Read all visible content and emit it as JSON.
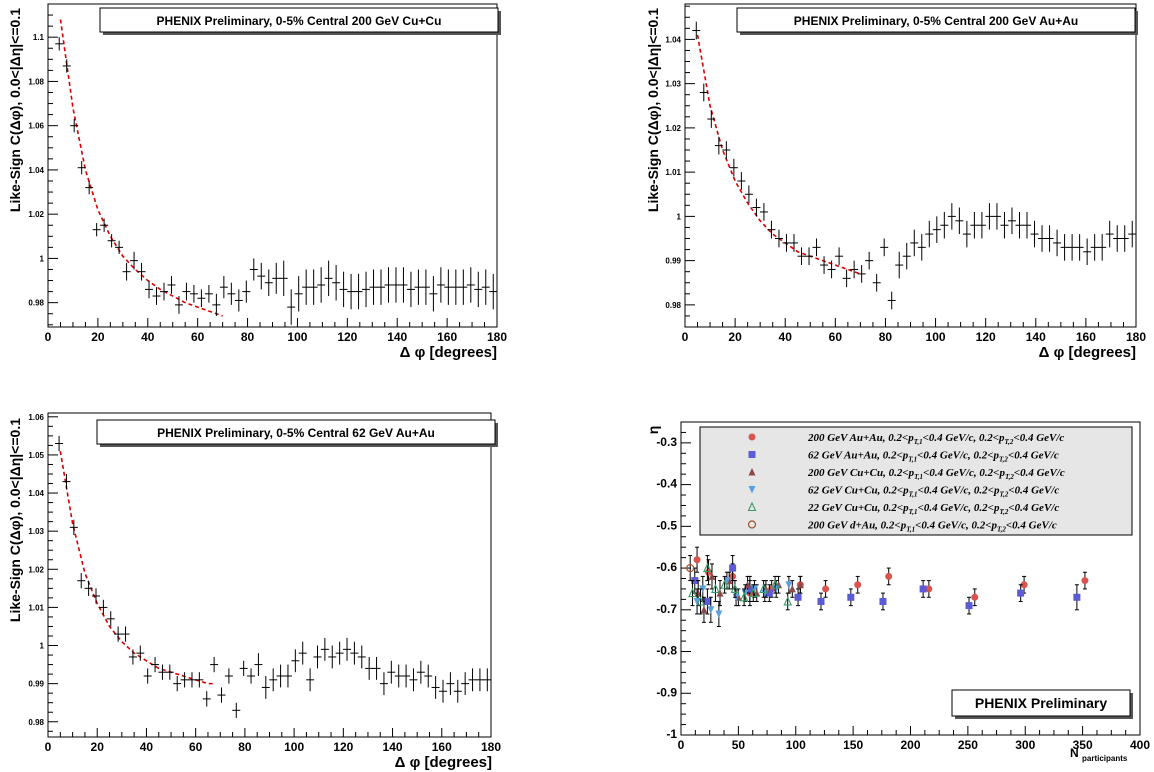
{
  "colors": {
    "cuau200": "#d9534f",
    "auau62": "#5b5bd6",
    "cucu200": "#8b4a4a",
    "cucu62": "#5aa0e0",
    "cucu22": "#3a9a6a",
    "dau200": "#a0522d",
    "fit": "#dd0000"
  },
  "chart_data": [
    {
      "type": "scatter",
      "title": "PHENIX Preliminary, 0-5% Central 200 GeV Cu+Cu",
      "xlabel": "Δ φ [degrees]",
      "ylabel": "Like-Sign C(Δφ), 0.0<|Δη|<=0.1",
      "xlim": [
        0,
        180
      ],
      "ylim": [
        0.969,
        1.115
      ],
      "xticks": [
        0,
        20,
        40,
        60,
        80,
        100,
        120,
        140,
        160,
        180
      ],
      "yticks": [
        0.98,
        1.0,
        1.02,
        1.04,
        1.06,
        1.08,
        1.1
      ],
      "ytick_labels": [
        "0.98",
        "1",
        "1.02",
        "1.04",
        "1.06",
        "1.08",
        "1.1"
      ],
      "x": [
        4.5,
        7.5,
        10.5,
        13.5,
        16.5,
        19.5,
        22.5,
        25.5,
        28.5,
        31.5,
        34.5,
        37.5,
        40.5,
        43.5,
        46.5,
        49.5,
        52.5,
        55.5,
        58.5,
        61.5,
        64.5,
        67.5,
        70.5,
        73.5,
        76.5,
        79.5,
        82.5,
        85.5,
        88.5,
        91.5,
        94.5,
        97.5,
        100.5,
        103.5,
        106.5,
        109.5,
        112.5,
        115.5,
        118.5,
        121.5,
        124.5,
        127.5,
        130.5,
        133.5,
        136.5,
        139.5,
        142.5,
        145.5,
        148.5,
        151.5,
        154.5,
        157.5,
        160.5,
        163.5,
        166.5,
        169.5,
        172.5,
        175.5,
        178.5
      ],
      "y": [
        1.097,
        1.087,
        1.06,
        1.041,
        1.032,
        1.013,
        1.015,
        1.008,
        1.005,
        0.994,
        0.999,
        0.994,
        0.986,
        0.983,
        0.985,
        0.988,
        0.979,
        0.985,
        0.984,
        0.982,
        0.984,
        0.979,
        0.987,
        0.984,
        0.981,
        0.985,
        0.995,
        0.992,
        0.989,
        0.991,
        0.991,
        0.978,
        0.984,
        0.987,
        0.987,
        0.988,
        0.991,
        0.989,
        0.986,
        0.985,
        0.985,
        0.986,
        0.987,
        0.987,
        0.988,
        0.988,
        0.988,
        0.986,
        0.987,
        0.987,
        0.984,
        0.988,
        0.987,
        0.987,
        0.987,
        0.988,
        0.986,
        0.987,
        0.985
      ],
      "yerr": [
        0.003,
        0.003,
        0.003,
        0.003,
        0.003,
        0.003,
        0.003,
        0.003,
        0.003,
        0.004,
        0.004,
        0.004,
        0.004,
        0.004,
        0.004,
        0.004,
        0.004,
        0.004,
        0.004,
        0.004,
        0.004,
        0.005,
        0.005,
        0.005,
        0.005,
        0.005,
        0.005,
        0.006,
        0.006,
        0.007,
        0.008,
        0.008,
        0.008,
        0.008,
        0.008,
        0.008,
        0.008,
        0.008,
        0.008,
        0.008,
        0.008,
        0.008,
        0.008,
        0.008,
        0.008,
        0.008,
        0.008,
        0.008,
        0.008,
        0.008,
        0.008,
        0.008,
        0.008,
        0.008,
        0.008,
        0.008,
        0.008,
        0.008,
        0.008
      ],
      "fit": {
        "x": [
          5,
          10,
          15,
          20,
          25,
          30,
          35,
          40,
          45,
          50,
          55,
          60,
          65,
          70
        ],
        "y": [
          1.108,
          1.068,
          1.04,
          1.022,
          1.01,
          1.001,
          0.995,
          0.99,
          0.986,
          0.983,
          0.98,
          0.978,
          0.976,
          0.974
        ]
      }
    },
    {
      "type": "scatter",
      "title": "PHENIX Preliminary, 0-5% Central 200 GeV Au+Au",
      "xlabel": "Δ φ [degrees]",
      "ylabel": "Like-Sign C(Δφ), 0.0<|Δη|<=0.1",
      "xlim": [
        0,
        180
      ],
      "ylim": [
        0.975,
        1.048
      ],
      "xticks": [
        0,
        20,
        40,
        60,
        80,
        100,
        120,
        140,
        160,
        180
      ],
      "yticks": [
        0.98,
        0.99,
        1.0,
        1.01,
        1.02,
        1.03,
        1.04
      ],
      "ytick_labels": [
        "0.98",
        "0.99",
        "1",
        "1.01",
        "1.02",
        "1.03",
        "1.04"
      ],
      "x": [
        4.5,
        7.5,
        10.5,
        13.5,
        16.5,
        19.5,
        22.5,
        25.5,
        28.5,
        31.5,
        34.5,
        37.5,
        40.5,
        43.5,
        46.5,
        49.5,
        52.5,
        55.5,
        58.5,
        61.5,
        64.5,
        67.5,
        70.5,
        73.5,
        76.5,
        79.5,
        82.5,
        85.5,
        88.5,
        91.5,
        94.5,
        97.5,
        100.5,
        103.5,
        106.5,
        109.5,
        112.5,
        115.5,
        118.5,
        121.5,
        124.5,
        127.5,
        130.5,
        133.5,
        136.5,
        139.5,
        142.5,
        145.5,
        148.5,
        151.5,
        154.5,
        157.5,
        160.5,
        163.5,
        166.5,
        169.5,
        172.5,
        175.5,
        178.5
      ],
      "y": [
        1.042,
        1.028,
        1.022,
        1.016,
        1.015,
        1.011,
        1.008,
        1.005,
        1.002,
        1.001,
        0.997,
        0.995,
        0.994,
        0.994,
        0.991,
        0.991,
        0.993,
        0.989,
        0.988,
        0.991,
        0.986,
        0.988,
        0.987,
        0.99,
        0.985,
        0.993,
        0.981,
        0.989,
        0.991,
        0.994,
        0.993,
        0.996,
        0.997,
        0.998,
        1.0,
        0.999,
        0.996,
        0.998,
        0.998,
        1.0,
        1.0,
        0.998,
        0.999,
        0.998,
        0.998,
        0.996,
        0.995,
        0.995,
        0.994,
        0.993,
        0.993,
        0.993,
        0.992,
        0.993,
        0.993,
        0.996,
        0.995,
        0.995,
        0.996
      ],
      "yerr": [
        0.002,
        0.002,
        0.002,
        0.002,
        0.002,
        0.002,
        0.002,
        0.002,
        0.002,
        0.002,
        0.002,
        0.002,
        0.002,
        0.002,
        0.002,
        0.002,
        0.002,
        0.002,
        0.002,
        0.002,
        0.002,
        0.002,
        0.002,
        0.002,
        0.002,
        0.002,
        0.002,
        0.003,
        0.003,
        0.003,
        0.003,
        0.003,
        0.003,
        0.003,
        0.003,
        0.003,
        0.003,
        0.003,
        0.003,
        0.003,
        0.003,
        0.003,
        0.003,
        0.003,
        0.003,
        0.003,
        0.003,
        0.003,
        0.003,
        0.003,
        0.003,
        0.003,
        0.003,
        0.003,
        0.003,
        0.003,
        0.003,
        0.003,
        0.003
      ],
      "fit": {
        "x": [
          5,
          10,
          15,
          20,
          25,
          30,
          35,
          40,
          45,
          50,
          55,
          60,
          65,
          70
        ],
        "y": [
          1.041,
          1.025,
          1.015,
          1.008,
          1.003,
          0.999,
          0.996,
          0.994,
          0.992,
          0.991,
          0.99,
          0.989,
          0.988,
          0.987
        ]
      }
    },
    {
      "type": "scatter",
      "title": "PHENIX Preliminary, 0-5% Central 62 GeV Au+Au",
      "xlabel": "Δ φ [degrees]",
      "ylabel": "Like-Sign C(Δφ), 0.0<|Δη|<=0.1",
      "xlim": [
        0,
        180
      ],
      "ylim": [
        0.976,
        1.061
      ],
      "xticks": [
        0,
        20,
        40,
        60,
        80,
        100,
        120,
        140,
        160,
        180
      ],
      "yticks": [
        0.98,
        0.99,
        1.0,
        1.01,
        1.02,
        1.03,
        1.04,
        1.05,
        1.06
      ],
      "ytick_labels": [
        "0.98",
        "0.99",
        "1",
        "1.01",
        "1.02",
        "1.03",
        "1.04",
        "1.05",
        "1.06"
      ],
      "x": [
        4.5,
        7.5,
        10.5,
        13.5,
        16.5,
        19.5,
        22.5,
        25.5,
        28.5,
        31.5,
        34.5,
        37.5,
        40.5,
        43.5,
        46.5,
        49.5,
        52.5,
        55.5,
        58.5,
        61.5,
        64.5,
        67.5,
        70.5,
        73.5,
        76.5,
        79.5,
        82.5,
        85.5,
        88.5,
        91.5,
        94.5,
        97.5,
        100.5,
        103.5,
        106.5,
        109.5,
        112.5,
        115.5,
        118.5,
        121.5,
        124.5,
        127.5,
        130.5,
        133.5,
        136.5,
        139.5,
        142.5,
        145.5,
        148.5,
        151.5,
        154.5,
        157.5,
        160.5,
        163.5,
        166.5,
        169.5,
        172.5,
        175.5,
        178.5
      ],
      "y": [
        1.053,
        1.043,
        1.031,
        1.017,
        1.015,
        1.013,
        1.01,
        1.007,
        1.003,
        1.003,
        0.997,
        0.998,
        0.992,
        0.995,
        0.993,
        0.993,
        0.99,
        0.991,
        0.991,
        0.991,
        0.986,
        0.995,
        0.987,
        0.992,
        0.983,
        0.994,
        0.992,
        0.995,
        0.989,
        0.991,
        0.992,
        0.992,
        0.996,
        0.998,
        0.991,
        0.997,
        0.999,
        0.997,
        0.998,
        0.999,
        0.998,
        0.997,
        0.994,
        0.994,
        0.99,
        0.993,
        0.992,
        0.992,
        0.991,
        0.993,
        0.992,
        0.989,
        0.988,
        0.99,
        0.988,
        0.99,
        0.991,
        0.991,
        0.991
      ],
      "yerr": [
        0.002,
        0.002,
        0.002,
        0.002,
        0.002,
        0.002,
        0.002,
        0.002,
        0.002,
        0.002,
        0.002,
        0.002,
        0.002,
        0.002,
        0.002,
        0.002,
        0.002,
        0.002,
        0.002,
        0.002,
        0.002,
        0.002,
        0.002,
        0.002,
        0.002,
        0.002,
        0.002,
        0.003,
        0.003,
        0.003,
        0.003,
        0.003,
        0.003,
        0.003,
        0.003,
        0.003,
        0.003,
        0.003,
        0.003,
        0.003,
        0.003,
        0.003,
        0.003,
        0.003,
        0.003,
        0.003,
        0.003,
        0.003,
        0.003,
        0.003,
        0.003,
        0.003,
        0.003,
        0.003,
        0.003,
        0.003,
        0.003,
        0.003,
        0.003
      ],
      "fit": {
        "x": [
          5,
          10,
          15,
          20,
          25,
          30,
          35,
          40,
          45,
          50,
          55,
          60,
          65,
          68
        ],
        "y": [
          1.051,
          1.032,
          1.019,
          1.011,
          1.005,
          1.001,
          0.998,
          0.996,
          0.994,
          0.993,
          0.992,
          0.991,
          0.99,
          0.99
        ]
      }
    },
    {
      "type": "scatter",
      "title": "PHENIX Preliminary",
      "xlabel": "N",
      "xlabel_sub": "participants",
      "ylabel": "η",
      "xlim": [
        0,
        400
      ],
      "ylim": [
        -1.0,
        -0.25
      ],
      "xticks": [
        0,
        50,
        100,
        150,
        200,
        250,
        300,
        350,
        400
      ],
      "yticks": [
        -1.0,
        -0.9,
        -0.8,
        -0.7,
        -0.6,
        -0.5,
        -0.4,
        -0.3
      ],
      "ytick_labels": [
        "-1",
        "-0.9",
        "-0.8",
        "-0.7",
        "-0.6",
        "-0.5",
        "-0.4",
        "-0.3"
      ],
      "series": [
        {
          "name": "200 GeV Au+Au, 0.2<p_T,1<0.4 GeV/c, 0.2<p_T,2<0.4 GeV/c",
          "label_main": "200 GeV Au+Au, 0.2<p",
          "marker": "circle",
          "color": "#d9534f",
          "x": [
            14,
            24,
            45,
            60,
            79,
            104,
            126,
            154,
            181,
            216,
            256,
            299,
            352
          ],
          "y": [
            -0.58,
            -0.61,
            -0.62,
            -0.66,
            -0.65,
            -0.64,
            -0.65,
            -0.64,
            -0.62,
            -0.65,
            -0.67,
            -0.64,
            -0.63
          ],
          "yerr": [
            0.03,
            0.03,
            0.03,
            0.03,
            0.02,
            0.02,
            0.02,
            0.02,
            0.02,
            0.02,
            0.02,
            0.02,
            0.02
          ]
        },
        {
          "name": "62 GeV Au+Au, 0.2<p_T,1<0.4 GeV/c, 0.2<p_T,2<0.4 GeV/c",
          "marker": "square",
          "color": "#5b5bd6",
          "x": [
            12,
            23,
            45,
            60,
            77,
            102,
            122,
            148,
            176,
            211,
            251,
            296,
            345
          ],
          "y": [
            -0.63,
            -0.68,
            -0.6,
            -0.65,
            -0.66,
            -0.67,
            -0.68,
            -0.67,
            -0.68,
            -0.65,
            -0.69,
            -0.66,
            -0.67
          ],
          "yerr": [
            0.03,
            0.03,
            0.03,
            0.03,
            0.02,
            0.02,
            0.02,
            0.02,
            0.02,
            0.02,
            0.02,
            0.02,
            0.03
          ]
        },
        {
          "name": "200 GeV Cu+Cu, 0.2<p_T,1<0.4 GeV/c, 0.2<p_T,2<0.4 GeV/c",
          "marker": "triangle-up",
          "color": "#8b4a4a",
          "x": [
            15,
            20,
            27,
            34,
            42,
            50,
            58,
            66,
            74,
            85,
            97,
            104
          ],
          "y": [
            -0.66,
            -0.7,
            -0.62,
            -0.66,
            -0.63,
            -0.67,
            -0.64,
            -0.66,
            -0.65,
            -0.64,
            -0.65,
            -0.64
          ],
          "yerr": [
            0.03,
            0.03,
            0.03,
            0.03,
            0.02,
            0.02,
            0.02,
            0.02,
            0.02,
            0.02,
            0.02,
            0.02
          ]
        },
        {
          "name": "62 GeV Cu+Cu, 0.2<p_T,1<0.4 GeV/c, 0.2<p_T,2<0.4 GeV/c",
          "marker": "triangle-down",
          "color": "#5aa0e0",
          "x": [
            14,
            19,
            26,
            33,
            40,
            48,
            56,
            64,
            73,
            83,
            94
          ],
          "y": [
            -0.68,
            -0.65,
            -0.7,
            -0.71,
            -0.63,
            -0.67,
            -0.66,
            -0.65,
            -0.66,
            -0.65,
            -0.64
          ],
          "yerr": [
            0.03,
            0.03,
            0.03,
            0.03,
            0.02,
            0.02,
            0.02,
            0.02,
            0.02,
            0.02,
            0.02
          ]
        },
        {
          "name": "22 GeV Cu+Cu, 0.2<p_T,1<0.4 GeV/c, 0.2<p_T,2<0.4 GeV/c",
          "marker": "triangle-open",
          "color": "#3a9a6a",
          "x": [
            10,
            17,
            23,
            30,
            38,
            47,
            55,
            63,
            72,
            82,
            93
          ],
          "y": [
            -0.66,
            -0.68,
            -0.6,
            -0.65,
            -0.64,
            -0.65,
            -0.67,
            -0.66,
            -0.65,
            -0.64,
            -0.68
          ],
          "yerr": [
            0.03,
            0.03,
            0.03,
            0.03,
            0.02,
            0.02,
            0.02,
            0.02,
            0.02,
            0.02,
            0.02
          ]
        },
        {
          "name": "200 GeV d+Au, 0.2<p_T,1<0.4 GeV/c, 0.2<p_T,2<0.4 GeV/c",
          "marker": "circle-open",
          "color": "#a0522d",
          "x": [
            8
          ],
          "y": [
            -0.6
          ],
          "yerr": [
            0.03
          ]
        }
      ]
    }
  ]
}
